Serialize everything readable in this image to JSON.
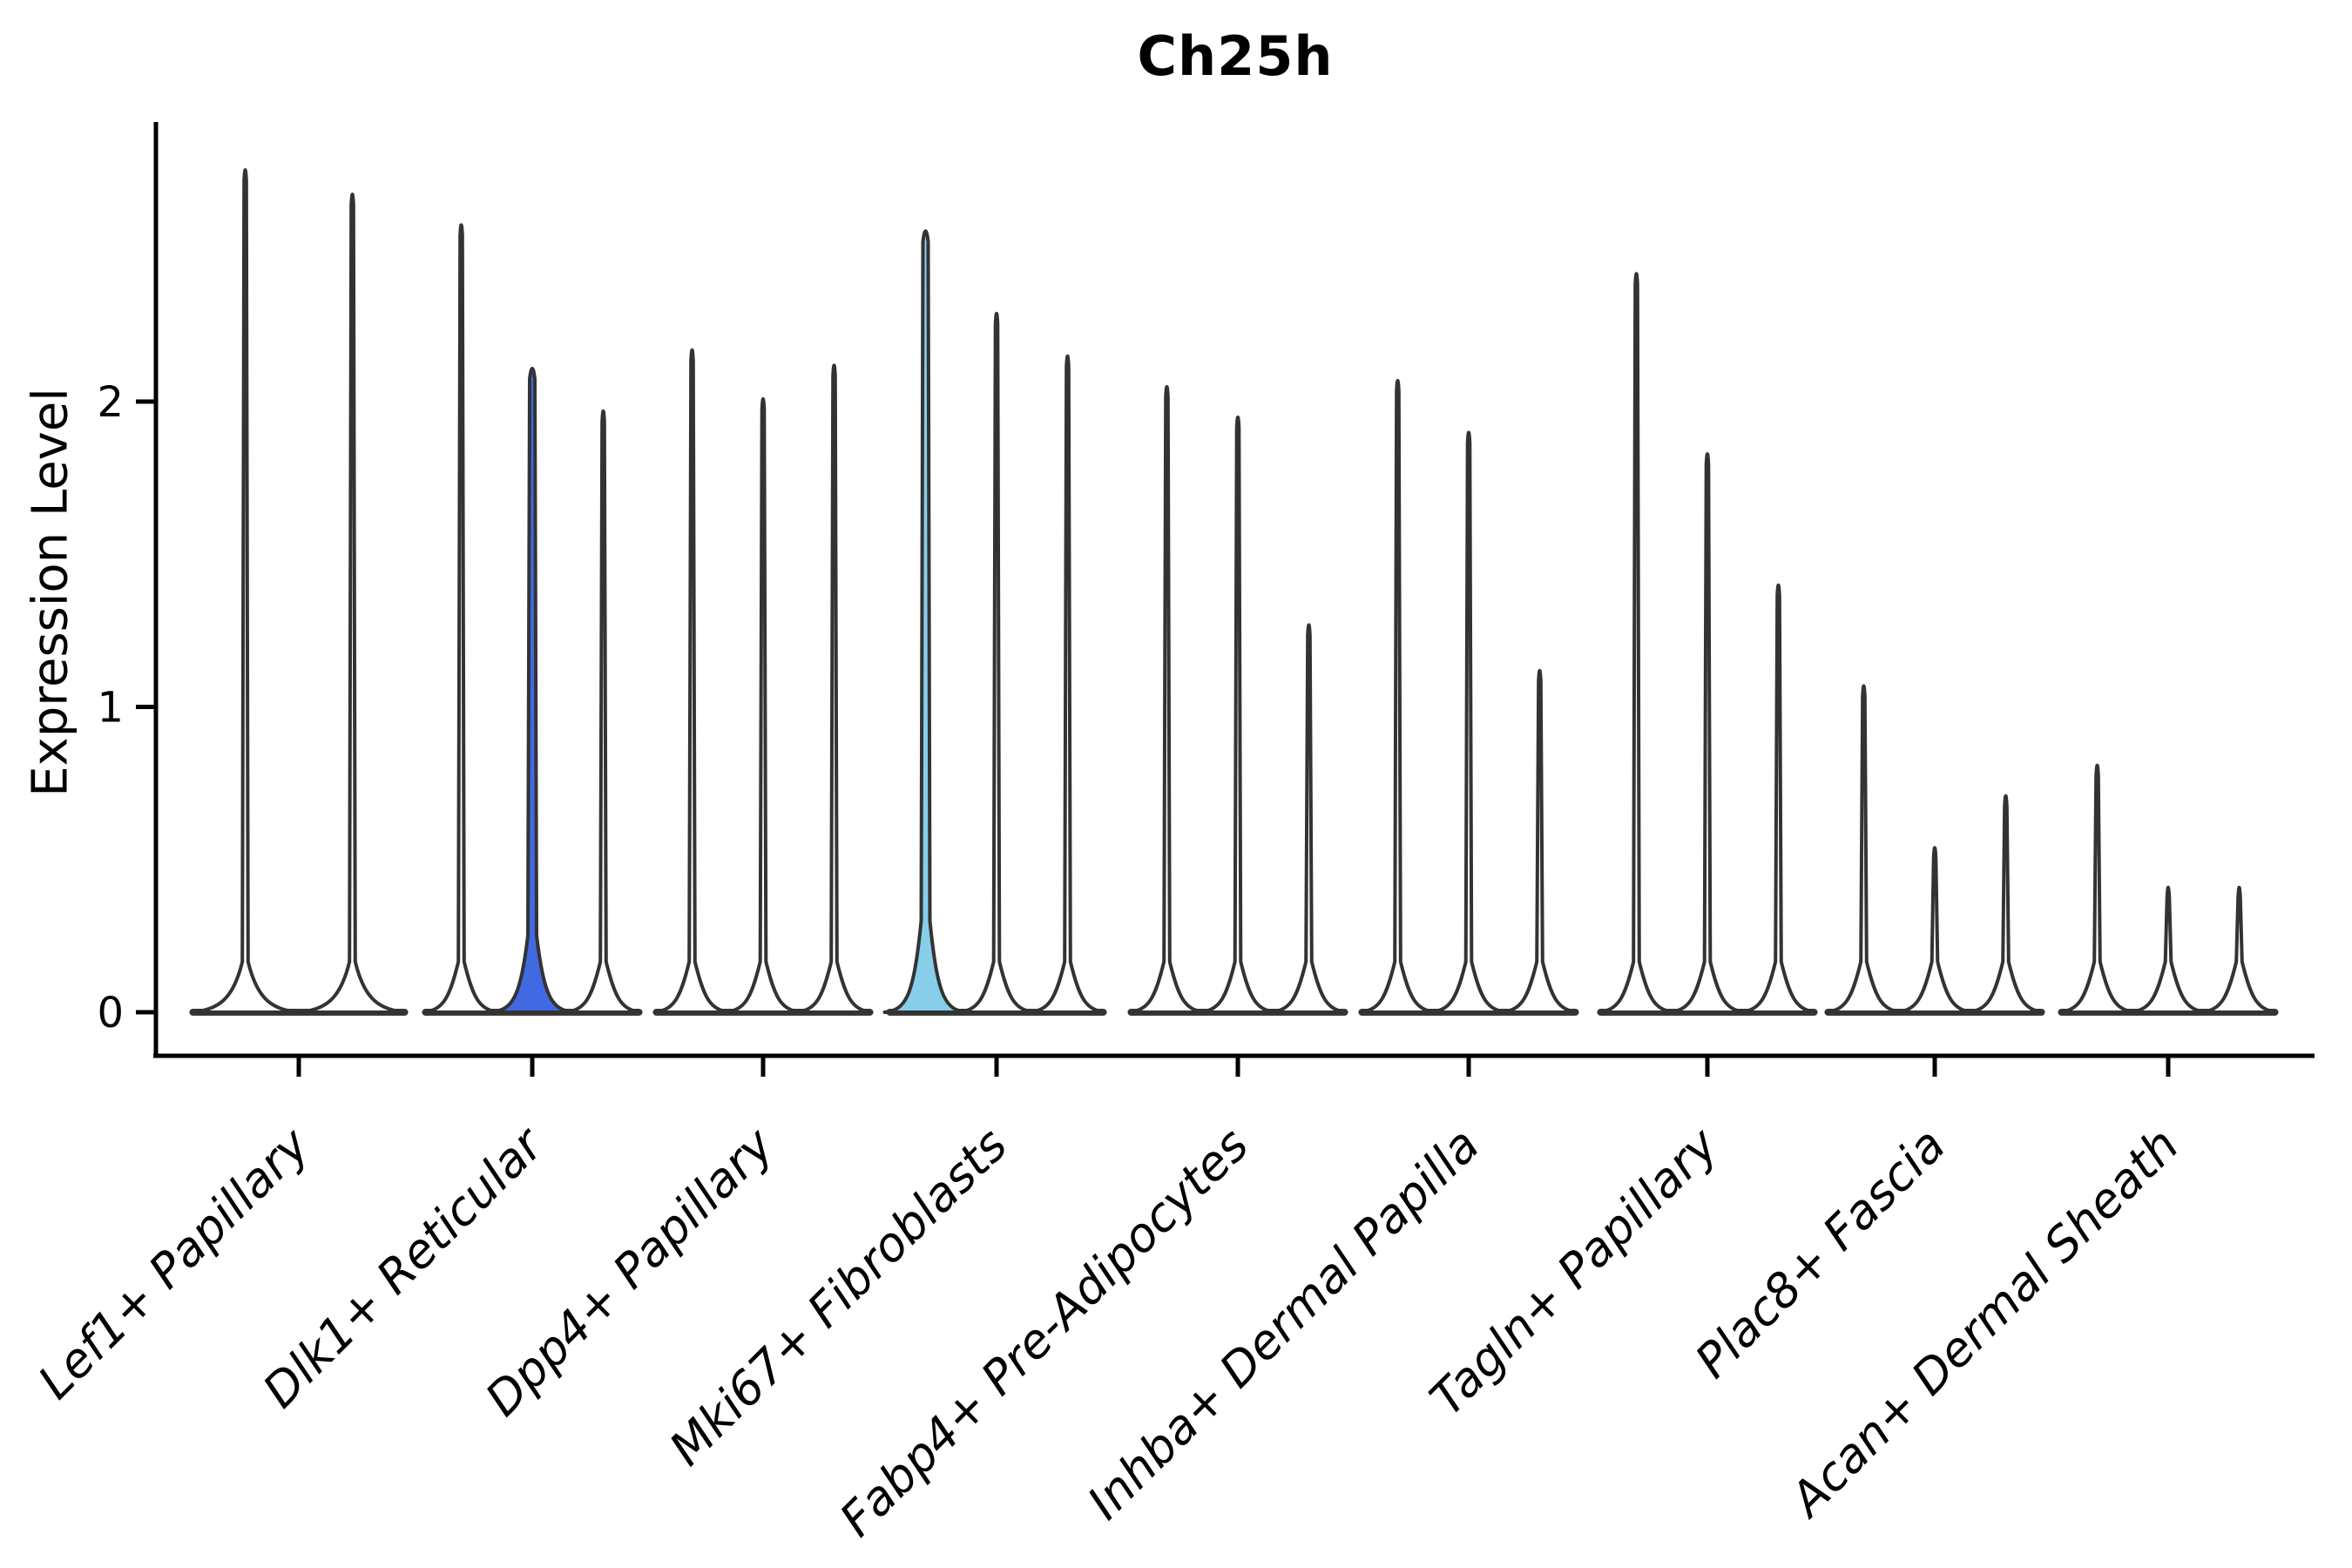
{
  "title": "Ch25h",
  "ylabel": "Expression Level",
  "chart_data": {
    "type": "violin",
    "title": "Ch25h",
    "xlabel": "",
    "ylabel": "Expression Level",
    "ylim": [
      0,
      2.92
    ],
    "yticks": [
      "0",
      "1",
      "2"
    ],
    "grid": false,
    "legend": "none",
    "description": "Grouped violin plot of Ch25h expression; every violin is bottom-heavy (nearly all mass at 0) with a thin spike rising to its maximum expression value. Two violins are color-filled, all others are white with dark edges.",
    "colors": {
      "edge": "#333333",
      "baseline": "#3a3a3a",
      "highlight_royalblue": "#4169e1",
      "highlight_skyblue": "#87ceeb",
      "background": "#ffffff"
    },
    "groups": [
      {
        "label": "Lef1+ Papillary",
        "violins": [
          {
            "max": 2.77
          },
          {
            "max": 2.69
          }
        ]
      },
      {
        "label": "Dlk1+ Reticular",
        "violins": [
          {
            "max": 2.59
          },
          {
            "max": 2.12,
            "fill": "#4169e1"
          },
          {
            "max": 1.98
          }
        ]
      },
      {
        "label": "Dpp4+ Papillary",
        "violins": [
          {
            "max": 2.18
          },
          {
            "max": 2.02
          },
          {
            "max": 2.13
          }
        ]
      },
      {
        "label": "Mki67+ Fibroblasts",
        "violins": [
          {
            "max": 2.57,
            "fill": "#87ceeb"
          },
          {
            "max": 2.3
          },
          {
            "max": 2.16
          }
        ]
      },
      {
        "label": "Fabp4+ Pre-Adipocytes",
        "violins": [
          {
            "max": 2.06
          },
          {
            "max": 1.96
          },
          {
            "max": 1.28
          }
        ]
      },
      {
        "label": "Inhba+ Dermal Papilla",
        "violins": [
          {
            "max": 2.08
          },
          {
            "max": 1.91
          },
          {
            "max": 1.13
          }
        ]
      },
      {
        "label": "Tagln+ Papillary",
        "violins": [
          {
            "max": 2.43
          },
          {
            "max": 1.84
          },
          {
            "max": 1.41
          }
        ]
      },
      {
        "label": "Plac8+ Fascia",
        "violins": [
          {
            "max": 1.08
          },
          {
            "max": 0.55
          },
          {
            "max": 0.72
          }
        ]
      },
      {
        "label": "Acan+ Dermal Sheath",
        "violins": [
          {
            "max": 0.82
          },
          {
            "max": 0.42
          },
          {
            "max": 0.42
          }
        ]
      }
    ]
  }
}
